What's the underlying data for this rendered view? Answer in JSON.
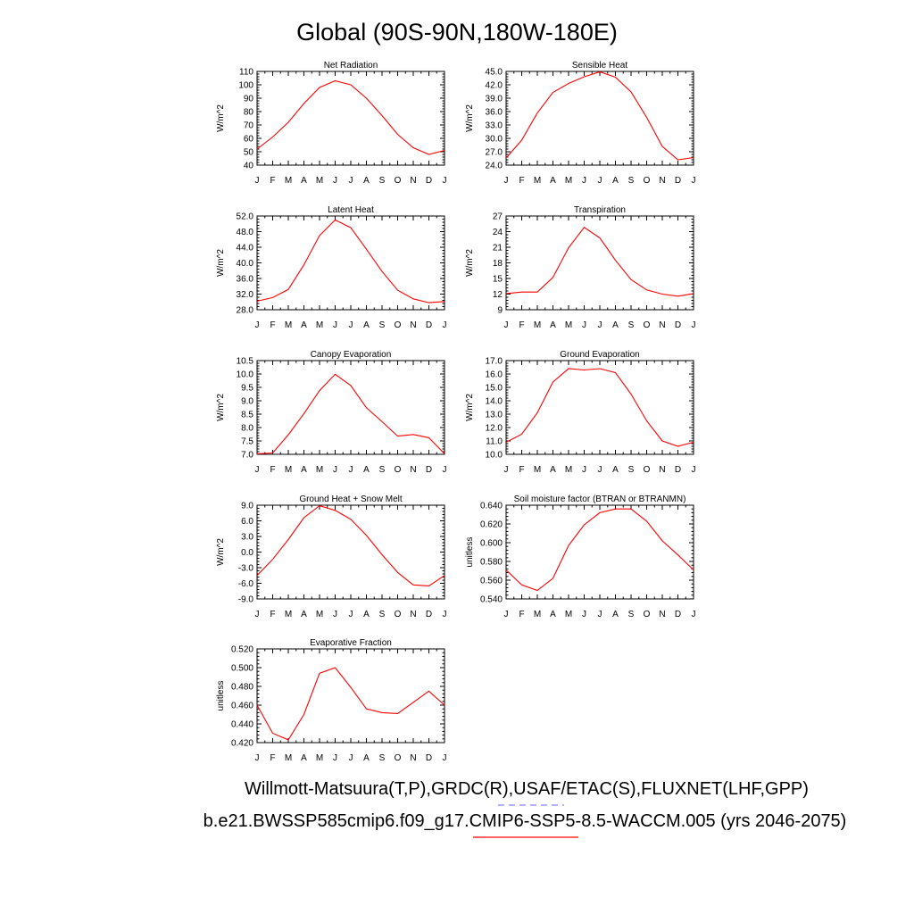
{
  "title": "Global (90S-90N,180W-180E)",
  "footer": {
    "obs_line": "Willmott-Matsuura(T,P),GRDC(R),USAF/ETAC(S),FLUXNET(LHF,GPP)",
    "model_line": "b.e21.BWSSP585cmip6.f09_g17.CMIP6-SSP5-8.5-WACCM.005 (yrs 2046-2075)",
    "obs_color": "#6666ff",
    "model_color": "#ff0000"
  },
  "colors": {
    "series": "#ff0000",
    "axes": "#000000"
  },
  "chart_data": [
    {
      "type": "line",
      "title": "Net Radiation",
      "ylabel": "W/m^2",
      "xlabel": "",
      "categories": [
        "J",
        "F",
        "M",
        "A",
        "M",
        "J",
        "J",
        "A",
        "S",
        "O",
        "N",
        "D",
        "J"
      ],
      "ylim": [
        40,
        110
      ],
      "yticks": [
        "40",
        "50",
        "60",
        "70",
        "80",
        "90",
        "100",
        "110"
      ],
      "ytick_values": [
        40,
        50,
        60,
        70,
        80,
        90,
        100,
        110
      ],
      "series": [
        {
          "name": "model",
          "values": [
            52,
            61,
            72,
            86,
            98,
            103,
            100,
            90,
            77,
            63,
            53,
            48,
            51
          ]
        }
      ]
    },
    {
      "type": "line",
      "title": "Sensible Heat",
      "ylabel": "W/m^2",
      "xlabel": "",
      "categories": [
        "J",
        "F",
        "M",
        "A",
        "M",
        "J",
        "J",
        "A",
        "S",
        "O",
        "N",
        "D",
        "J"
      ],
      "ylim": [
        24,
        45
      ],
      "yticks": [
        "24.0",
        "27.0",
        "30.0",
        "33.0",
        "36.0",
        "39.0",
        "42.0",
        "45.0"
      ],
      "ytick_values": [
        24,
        27,
        30,
        33,
        36,
        39,
        42,
        45
      ],
      "series": [
        {
          "name": "model",
          "values": [
            25.6,
            29.6,
            35.7,
            40.3,
            42.3,
            43.8,
            44.9,
            43.7,
            40.4,
            34.7,
            28.2,
            25.2,
            25.7
          ]
        }
      ]
    },
    {
      "type": "line",
      "title": "Latent Heat",
      "ylabel": "W/m^2",
      "xlabel": "",
      "categories": [
        "J",
        "F",
        "M",
        "A",
        "M",
        "J",
        "J",
        "A",
        "S",
        "O",
        "N",
        "D",
        "J"
      ],
      "ylim": [
        28,
        52
      ],
      "yticks": [
        "28.0",
        "32.0",
        "36.0",
        "40.0",
        "44.0",
        "48.0",
        "52.0"
      ],
      "ytick_values": [
        28,
        32,
        36,
        40,
        44,
        48,
        52
      ],
      "series": [
        {
          "name": "model",
          "values": [
            30.2,
            31.1,
            33.2,
            39.5,
            47.0,
            51.0,
            49.0,
            43.5,
            37.8,
            33.0,
            30.8,
            29.8,
            30.1
          ]
        }
      ]
    },
    {
      "type": "line",
      "title": "Transpiration",
      "ylabel": "W/m^2",
      "xlabel": "",
      "categories": [
        "J",
        "F",
        "M",
        "A",
        "M",
        "J",
        "J",
        "A",
        "S",
        "O",
        "N",
        "D",
        "J"
      ],
      "ylim": [
        9,
        27
      ],
      "yticks": [
        "9",
        "12",
        "15",
        "18",
        "21",
        "24",
        "27"
      ],
      "ytick_values": [
        9,
        12,
        15,
        18,
        21,
        24,
        27
      ],
      "series": [
        {
          "name": "model",
          "values": [
            12.1,
            12.4,
            12.4,
            15.2,
            20.9,
            24.8,
            22.8,
            18.5,
            14.8,
            12.8,
            12.0,
            11.6,
            12.1
          ]
        }
      ]
    },
    {
      "type": "line",
      "title": "Canopy Evaporation",
      "ylabel": "W/m^2",
      "xlabel": "",
      "categories": [
        "J",
        "F",
        "M",
        "A",
        "M",
        "J",
        "J",
        "A",
        "S",
        "O",
        "N",
        "D",
        "J"
      ],
      "ylim": [
        7,
        10.5
      ],
      "yticks": [
        "7.0",
        "7.5",
        "8.0",
        "8.5",
        "9.0",
        "9.5",
        "10.0",
        "10.5"
      ],
      "ytick_values": [
        7,
        7.5,
        8,
        8.5,
        9,
        9.5,
        10,
        10.5
      ],
      "series": [
        {
          "name": "model",
          "values": [
            7.02,
            7.05,
            7.73,
            8.52,
            9.38,
            9.99,
            9.57,
            8.74,
            8.22,
            7.68,
            7.74,
            7.62,
            7.02
          ]
        }
      ]
    },
    {
      "type": "line",
      "title": "Ground Evaporation",
      "ylabel": "W/m^2",
      "xlabel": "",
      "categories": [
        "J",
        "F",
        "M",
        "A",
        "M",
        "J",
        "J",
        "A",
        "S",
        "O",
        "N",
        "D",
        "J"
      ],
      "ylim": [
        10,
        17
      ],
      "yticks": [
        "10.0",
        "11.0",
        "12.0",
        "13.0",
        "14.0",
        "15.0",
        "16.0",
        "17.0"
      ],
      "ytick_values": [
        10,
        11,
        12,
        13,
        14,
        15,
        16,
        17
      ],
      "series": [
        {
          "name": "model",
          "values": [
            10.9,
            11.5,
            13.1,
            15.4,
            16.4,
            16.3,
            16.4,
            16.1,
            14.5,
            12.5,
            11.0,
            10.6,
            10.9
          ]
        }
      ]
    },
    {
      "type": "line",
      "title": "Ground Heat + Snow Melt",
      "ylabel": "W/m^2",
      "xlabel": "",
      "categories": [
        "J",
        "F",
        "M",
        "A",
        "M",
        "J",
        "J",
        "A",
        "S",
        "O",
        "N",
        "D",
        "J"
      ],
      "ylim": [
        -9,
        9
      ],
      "yticks": [
        "-9.0",
        "-6.0",
        "-3.0",
        "0.0",
        "3.0",
        "6.0",
        "9.0"
      ],
      "ytick_values": [
        -9,
        -6,
        -3,
        0,
        3,
        6,
        9
      ],
      "series": [
        {
          "name": "model",
          "values": [
            -4.5,
            -1.4,
            2.4,
            6.6,
            8.9,
            8.0,
            6.3,
            3.2,
            -0.5,
            -3.9,
            -6.3,
            -6.5,
            -4.5
          ]
        }
      ]
    },
    {
      "type": "line",
      "title": "Soil moisture factor (BTRAN or BTRANMN)",
      "ylabel": "unitless",
      "xlabel": "",
      "categories": [
        "J",
        "F",
        "M",
        "A",
        "M",
        "J",
        "J",
        "A",
        "S",
        "O",
        "N",
        "D",
        "J"
      ],
      "ylim": [
        0.54,
        0.64
      ],
      "yticks": [
        "0.540",
        "0.560",
        "0.580",
        "0.600",
        "0.620",
        "0.640"
      ],
      "ytick_values": [
        0.54,
        0.56,
        0.58,
        0.6,
        0.62,
        0.64
      ],
      "series": [
        {
          "name": "model",
          "values": [
            0.571,
            0.555,
            0.549,
            0.562,
            0.597,
            0.619,
            0.632,
            0.636,
            0.636,
            0.623,
            0.602,
            0.587,
            0.571
          ]
        }
      ]
    },
    {
      "type": "line",
      "title": "Evaporative Fraction",
      "ylabel": "unitless",
      "xlabel": "",
      "categories": [
        "J",
        "F",
        "M",
        "A",
        "M",
        "J",
        "J",
        "A",
        "S",
        "O",
        "N",
        "D",
        "J"
      ],
      "ylim": [
        0.42,
        0.52
      ],
      "yticks": [
        "0.420",
        "0.440",
        "0.460",
        "0.480",
        "0.500",
        "0.520"
      ],
      "ytick_values": [
        0.42,
        0.44,
        0.46,
        0.48,
        0.5,
        0.52
      ],
      "series": [
        {
          "name": "model",
          "values": [
            0.46,
            0.43,
            0.423,
            0.45,
            0.494,
            0.5,
            0.479,
            0.456,
            0.452,
            0.451,
            0.463,
            0.475,
            0.46
          ]
        }
      ]
    }
  ]
}
